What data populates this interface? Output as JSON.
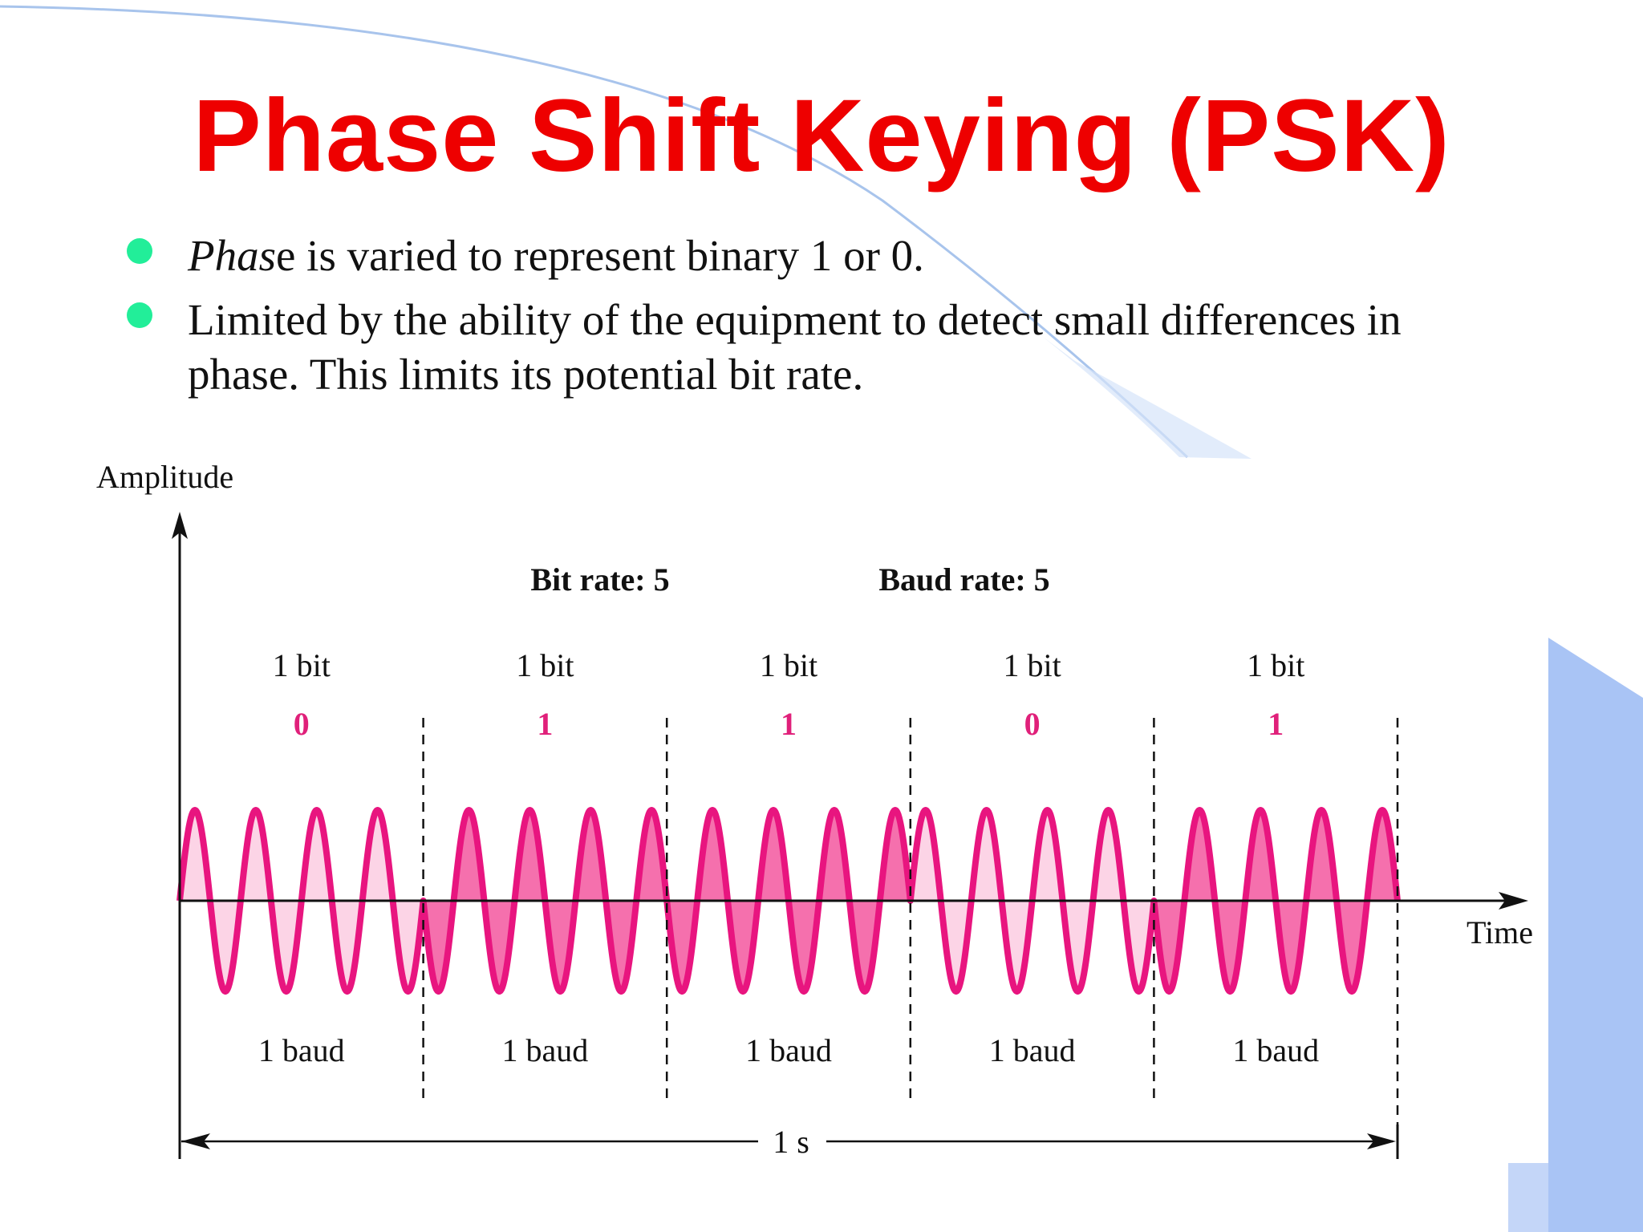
{
  "slide": {
    "title": "Phase Shift Keying (PSK)",
    "bullets": [
      {
        "italic_part": "Phas",
        "rest": "e is varied to represent binary 1 or 0."
      },
      {
        "italic_part": "",
        "rest": "Limited by the ability of the equipment to detect small differences in phase. This limits its potential bit rate."
      }
    ],
    "bullet_color": "#22ee99",
    "title_color": "#ee0000"
  },
  "diagram": {
    "y_axis_label": "Amplitude",
    "x_axis_label": "Time",
    "bit_rate_label": "Bit rate: 5",
    "baud_rate_label": "Baud rate: 5",
    "duration_label": "1 s",
    "bit_label": "1 bit",
    "baud_label": "1 baud",
    "bits": [
      "0",
      "1",
      "1",
      "0",
      "1"
    ],
    "bit_color": "#e0207a",
    "wave_color": "#e8157f",
    "fill_light": "#fcd4e6",
    "fill_dark": "#f570ad",
    "cycles_per_bit": 4
  }
}
